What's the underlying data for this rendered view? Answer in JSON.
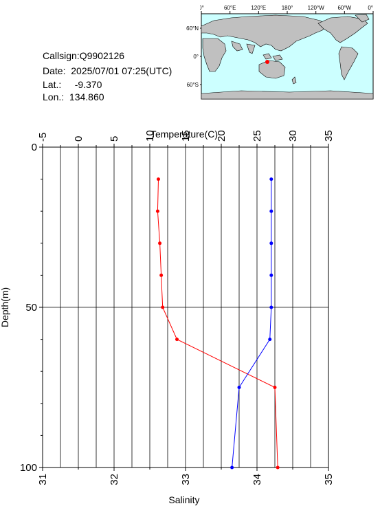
{
  "info": {
    "callsign_label": "Callsign:",
    "callsign": "Q9902126",
    "date_label": "Date:",
    "date": "2025/07/01 07:25(UTC)",
    "lat_label": "Lat.:",
    "lat": "-9.370",
    "lon_label": "Lon.:",
    "lon": "134.860"
  },
  "map": {
    "lon_labels": [
      "0°",
      "60°E",
      "120°E",
      "180°",
      "120°W",
      "60°W",
      "0°"
    ],
    "lat_labels": [
      "60°N",
      "0°",
      "60°S"
    ],
    "ocean_color": "#ccffff",
    "land_color": "#c0c0c0",
    "marker_color": "#ff0000"
  },
  "chart_data": {
    "type": "line",
    "x_top_label": "Temperature(C)",
    "x_top_ticks": [
      "-5",
      "0",
      "5",
      "10",
      "15",
      "20",
      "25",
      "30",
      "35"
    ],
    "x_top_range": [
      -5,
      35
    ],
    "x_bottom_label": "Salinity",
    "x_bottom_ticks": [
      "31",
      "32",
      "33",
      "34",
      "35"
    ],
    "x_bottom_range": [
      31,
      35
    ],
    "ylabel": "Depth(m)",
    "y_ticks": [
      "0",
      "50",
      "100"
    ],
    "y_range": [
      0,
      100
    ],
    "y_inverted": true,
    "grid": true,
    "series": [
      {
        "quantity": "temperature",
        "color": "#ff0000",
        "depth": [
          10,
          20,
          30,
          40,
          50,
          60,
          75,
          100
        ],
        "values": [
          11.2,
          11.1,
          11.4,
          11.6,
          11.8,
          13.8,
          27.5,
          27.9
        ]
      },
      {
        "quantity": "salinity",
        "color": "#0000ff",
        "depth": [
          10,
          20,
          30,
          40,
          50,
          60,
          75,
          100
        ],
        "values": [
          34.2,
          34.2,
          34.2,
          34.2,
          34.2,
          34.18,
          33.75,
          33.65
        ]
      }
    ]
  }
}
